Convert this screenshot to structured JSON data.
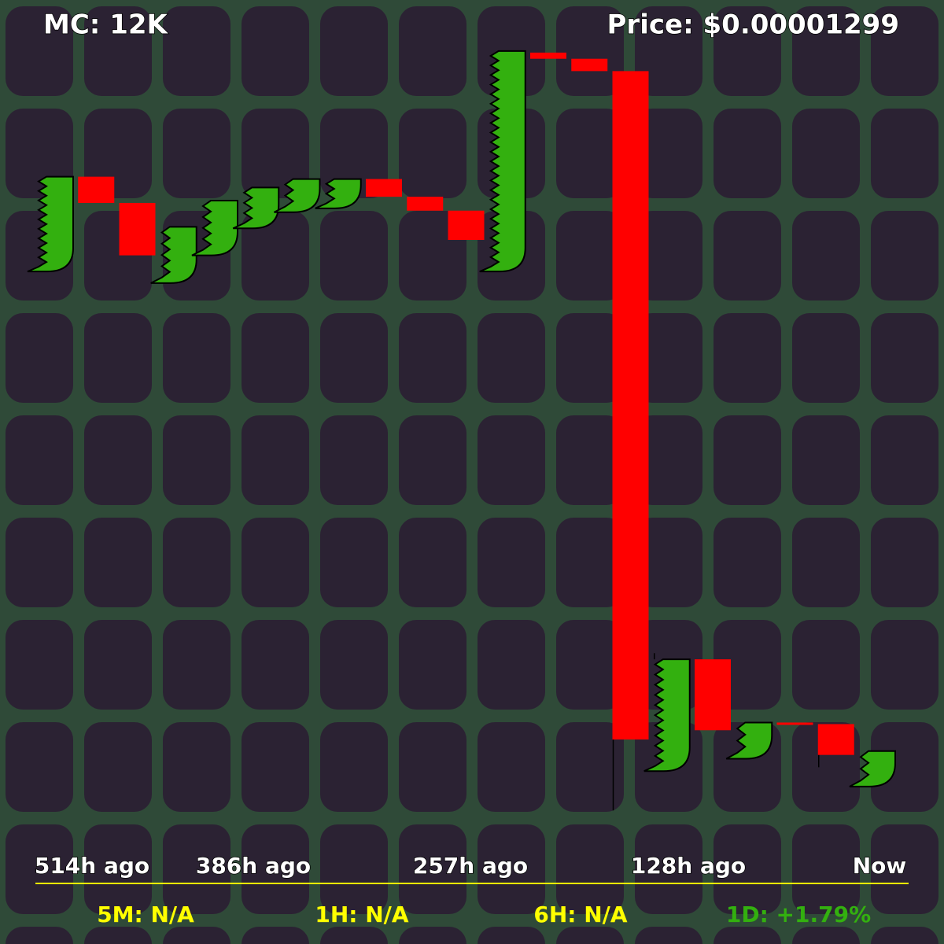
{
  "chart_data": {
    "type": "candlestick",
    "market_cap": "MC: 12K",
    "price": "Price: $0.00001299",
    "categories": [
      null,
      null,
      null,
      null,
      null,
      null,
      null,
      null,
      null,
      null,
      null,
      null,
      null,
      null,
      null,
      null,
      null,
      null,
      null,
      null,
      null
    ],
    "open": [
      70.9,
      83.2,
      79.8,
      69.4,
      73.0,
      76.5,
      78.6,
      79.1,
      82.9,
      80.6,
      78.8,
      70.9,
      99.3,
      98.5,
      96.9,
      6.1,
      20.6,
      7.7,
      12.4,
      12.2,
      4.1
    ],
    "close": [
      83.2,
      79.8,
      73.0,
      76.7,
      80.1,
      81.8,
      82.9,
      82.9,
      80.6,
      78.8,
      75.0,
      99.5,
      98.5,
      96.9,
      10.2,
      20.6,
      11.4,
      12.4,
      12.2,
      8.2,
      8.7
    ],
    "high": [
      null,
      null,
      null,
      null,
      null,
      null,
      null,
      null,
      null,
      null,
      null,
      null,
      null,
      null,
      null,
      21.4,
      null,
      null,
      null,
      null,
      null
    ],
    "low": [
      null,
      null,
      null,
      null,
      null,
      null,
      null,
      null,
      null,
      null,
      null,
      null,
      null,
      null,
      1.0,
      null,
      null,
      null,
      null,
      6.6,
      null
    ],
    "up_color": "#33b00f",
    "down_color": "#ff0000",
    "ylim": [
      0,
      100
    ],
    "x_labels": [
      "514h ago",
      "386h ago",
      "257h ago",
      "128h ago",
      "Now"
    ],
    "stats": [
      {
        "label": "5M: N/A",
        "color": "#ffff00"
      },
      {
        "label": "1H: N/A",
        "color": "#ffff00"
      },
      {
        "label": "6H: N/A",
        "color": "#ffff00"
      },
      {
        "label": "1D: +1.79%",
        "color": "#33b00f"
      }
    ]
  }
}
